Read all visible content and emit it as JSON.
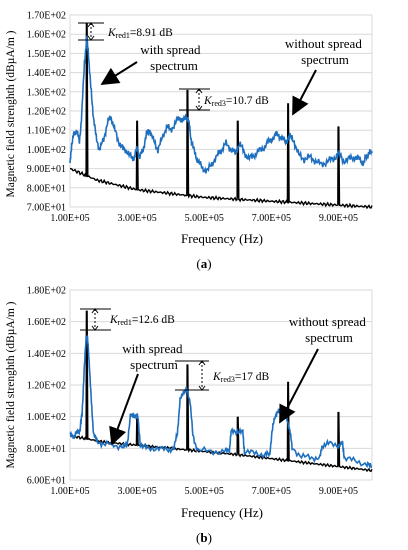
{
  "chart_data": [
    {
      "panel": "(a)",
      "type": "line",
      "xlabel": "Frequency (Hz)",
      "ylabel": "Magnetic field strenghth (dBµA/m )",
      "xlim": [
        100000,
        1000000
      ],
      "ylim": [
        70,
        170
      ],
      "xticks": [
        100000,
        300000,
        500000,
        700000,
        900000
      ],
      "xtick_labels": [
        "1.00E+05",
        "3.00E+05",
        "5.00E+05",
        "7.00E+05",
        "9.00E+05"
      ],
      "yticks": [
        70,
        80,
        90,
        100,
        110,
        120,
        130,
        140,
        150,
        160,
        170
      ],
      "ytick_labels": [
        "7.00E+01",
        "8.00E+01",
        "9.00E+01",
        "1.00E+02",
        "1.10E+02",
        "1.20E+02",
        "1.30E+02",
        "1.40E+02",
        "1.50E+02",
        "1.60E+02",
        "1.70E+02"
      ],
      "grid": "horizontal",
      "series": [
        {
          "color": "#000000",
          "baseline": [
            [
              100000,
              90
            ],
            [
              180000,
              84
            ],
            [
              300000,
              79
            ],
            [
              500000,
              75
            ],
            [
              700000,
              73
            ],
            [
              1000000,
              70
            ]
          ],
          "peaks": [
            [
              150000,
              166
            ],
            [
              300000,
              115
            ],
            [
              450000,
              131
            ],
            [
              600000,
              115
            ],
            [
              750000,
              124
            ],
            [
              900000,
              112
            ]
          ]
        },
        {
          "color": "#1f6fbf",
          "points": [
            [
              100000,
              92
            ],
            [
              105000,
              103
            ],
            [
              112000,
              108
            ],
            [
              120000,
              110
            ],
            [
              128000,
              104
            ],
            [
              135000,
              118
            ],
            [
              143000,
              145
            ],
            [
              150000,
              158
            ],
            [
              155000,
              150
            ],
            [
              162000,
              132
            ],
            [
              170000,
              117
            ],
            [
              178000,
              106
            ],
            [
              188000,
              100
            ],
            [
              200000,
              105
            ],
            [
              212000,
              114
            ],
            [
              222000,
              117
            ],
            [
              232000,
              111
            ],
            [
              245000,
              104
            ],
            [
              258000,
              100
            ],
            [
              272000,
              99
            ],
            [
              285000,
              95
            ],
            [
              292000,
              96
            ],
            [
              300000,
              101
            ],
            [
              308000,
              96
            ],
            [
              318000,
              100
            ],
            [
              328000,
              108
            ],
            [
              338000,
              110
            ],
            [
              350000,
              104
            ],
            [
              362000,
              100
            ],
            [
              375000,
              106
            ],
            [
              388000,
              112
            ],
            [
              400000,
              110
            ],
            [
              415000,
              114
            ],
            [
              425000,
              117
            ],
            [
              435000,
              114
            ],
            [
              445000,
              118
            ],
            [
              455000,
              113
            ],
            [
              462000,
              104
            ],
            [
              472000,
              98
            ],
            [
              482000,
              94
            ],
            [
              495000,
              90
            ],
            [
              510000,
              89
            ],
            [
              525000,
              93
            ],
            [
              540000,
              97
            ],
            [
              552000,
              100
            ],
            [
              565000,
              103
            ],
            [
              580000,
              100
            ],
            [
              592000,
              98
            ],
            [
              605000,
              103
            ],
            [
              618000,
              99
            ],
            [
              632000,
              95
            ],
            [
              648000,
              97
            ],
            [
              662000,
              99
            ],
            [
              678000,
              101
            ],
            [
              692000,
              104
            ],
            [
              705000,
              106
            ],
            [
              718000,
              108
            ],
            [
              730000,
              106
            ],
            [
              742000,
              104
            ],
            [
              755000,
              107
            ],
            [
              768000,
              104
            ],
            [
              782000,
              97
            ],
            [
              798000,
              95
            ],
            [
              815000,
              96
            ],
            [
              832000,
              94
            ],
            [
              850000,
              92
            ],
            [
              868000,
              94
            ],
            [
              885000,
              95
            ],
            [
              900000,
              98
            ],
            [
              915000,
              94
            ],
            [
              932000,
              95
            ],
            [
              948000,
              96
            ],
            [
              962000,
              95
            ],
            [
              975000,
              93
            ],
            [
              983000,
              96
            ],
            [
              990000,
              98
            ],
            [
              1000000,
              98
            ]
          ]
        }
      ],
      "annotations": {
        "kred1": "K",
        "kred1_sub": "red1",
        "kred1_val": "=8.91 dB",
        "kred3": "K",
        "kred3_sub": "red3",
        "kred3_val": "=10.7 dB",
        "with_spread_1": "with spread",
        "with_spread_2": "spectrum",
        "without_spread_1": "without spread",
        "without_spread_2": "spectrum"
      },
      "caption_open": "(",
      "caption_letter": "a",
      "caption_close": ")"
    },
    {
      "panel": "(b)",
      "type": "line",
      "xlabel": "Frequency (Hz)",
      "ylabel": "Magnetic field strenghth (dBµA/m )",
      "xlim": [
        100000,
        1000000
      ],
      "ylim": [
        60,
        180
      ],
      "xticks": [
        100000,
        300000,
        500000,
        700000,
        900000
      ],
      "xtick_labels": [
        "1.00E+05",
        "3.00E+05",
        "5.00E+05",
        "7.00E+05",
        "9.00E+05"
      ],
      "yticks": [
        60,
        80,
        100,
        120,
        140,
        160,
        180
      ],
      "ytick_labels": [
        "6.00E+01",
        "8.00E+01",
        "1.00E+02",
        "1.20E+02",
        "1.40E+02",
        "1.60E+02",
        "1.80E+02"
      ],
      "grid": "horizontal",
      "series": [
        {
          "color": "#000000",
          "baseline": [
            [
              100000,
              88
            ],
            [
              200000,
              84
            ],
            [
              400000,
              80
            ],
            [
              600000,
              76
            ],
            [
              800000,
              71
            ],
            [
              1000000,
              66
            ]
          ],
          "peaks": [
            [
              150000,
              167
            ],
            [
              300000,
              99
            ],
            [
              450000,
              133
            ],
            [
              600000,
              100
            ],
            [
              750000,
              122
            ],
            [
              900000,
              103
            ]
          ]
        },
        {
          "color": "#1f6fbf",
          "points": [
            [
              100000,
              88
            ],
            [
              112000,
              88
            ],
            [
              122000,
              90
            ],
            [
              130000,
              92
            ],
            [
              136000,
              102
            ],
            [
              142000,
              128
            ],
            [
              148000,
              150
            ],
            [
              152000,
              150
            ],
            [
              158000,
              132
            ],
            [
              164000,
              108
            ],
            [
              170000,
              90
            ],
            [
              180000,
              84
            ],
            [
              200000,
              83
            ],
            [
              230000,
              82
            ],
            [
              258000,
              81
            ],
            [
              270000,
              82
            ],
            [
              280000,
              100
            ],
            [
              292000,
              101
            ],
            [
              302000,
              100
            ],
            [
              310000,
              82
            ],
            [
              330000,
              80
            ],
            [
              360000,
              80
            ],
            [
              390000,
              79
            ],
            [
              410000,
              80
            ],
            [
              420000,
              90
            ],
            [
              428000,
              110
            ],
            [
              438000,
              116
            ],
            [
              448000,
              117
            ],
            [
              458000,
              110
            ],
            [
              466000,
              88
            ],
            [
              480000,
              79
            ],
            [
              520000,
              78
            ],
            [
              560000,
              78
            ],
            [
              575000,
              79
            ],
            [
              580000,
              90
            ],
            [
              598000,
              91
            ],
            [
              615000,
              90
            ],
            [
              620000,
              78
            ],
            [
              650000,
              77
            ],
            [
              680000,
              76
            ],
            [
              695000,
              76
            ],
            [
              702000,
              90
            ],
            [
              710000,
              100
            ],
            [
              720000,
              103
            ],
            [
              732000,
              102
            ],
            [
              745000,
              99
            ],
            [
              755000,
              92
            ],
            [
              762000,
              80
            ],
            [
              790000,
              75
            ],
            [
              820000,
              74
            ],
            [
              845000,
              74
            ],
            [
              852000,
              82
            ],
            [
              870000,
              83
            ],
            [
              900000,
              82
            ],
            [
              912000,
              83
            ],
            [
              918000,
              74
            ],
            [
              950000,
              72
            ],
            [
              985000,
              70
            ],
            [
              1000000,
              68
            ]
          ]
        }
      ],
      "annotations": {
        "kred1": "K",
        "kred1_sub": "red1",
        "kred1_val": "=12.6 dB",
        "kred3": "K",
        "kred3_sub": "red3",
        "kred3_val": "=17 dB",
        "with_spread_1": "with spread",
        "with_spread_2": "spectrum",
        "without_spread_1": "without spread",
        "without_spread_2": "spectrum"
      },
      "caption_open": "(",
      "caption_letter": "b",
      "caption_close": ")"
    }
  ]
}
